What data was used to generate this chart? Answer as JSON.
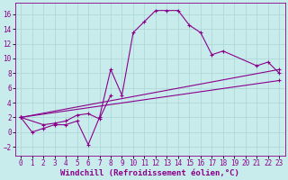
{
  "background_color": "#c8ecec",
  "grid_color": "#b0d8d8",
  "line_color": "#8b008b",
  "marker": "+",
  "xlabel": "Windchill (Refroidissement éolien,°C)",
  "xlabel_fontsize": 6.5,
  "xtick_fontsize": 5.5,
  "ytick_fontsize": 5.5,
  "xlim": [
    -0.5,
    23.5
  ],
  "ylim": [
    -3.2,
    17.5
  ],
  "yticks": [
    -2,
    0,
    2,
    4,
    6,
    8,
    10,
    12,
    14,
    16
  ],
  "xticks": [
    0,
    1,
    2,
    3,
    4,
    5,
    6,
    7,
    8,
    9,
    10,
    11,
    12,
    13,
    14,
    15,
    16,
    17,
    18,
    19,
    20,
    21,
    22,
    23
  ],
  "lines": [
    {
      "x": [
        0,
        1,
        2,
        3,
        4,
        5,
        6,
        7,
        8,
        9,
        10,
        11,
        12,
        13,
        14,
        15,
        16,
        17,
        18,
        21,
        22,
        23
      ],
      "y": [
        2.0,
        0.0,
        0.5,
        1.0,
        1.0,
        1.5,
        -1.7,
        2.0,
        8.5,
        5.0,
        13.5,
        15.0,
        16.5,
        16.5,
        16.5,
        14.5,
        13.5,
        10.5,
        11.0,
        9.0,
        9.5,
        8.0
      ]
    },
    {
      "x": [
        0,
        2,
        3,
        4,
        5,
        6,
        7,
        8
      ],
      "y": [
        2.0,
        1.0,
        1.2,
        1.5,
        2.3,
        2.5,
        1.8,
        5.0
      ]
    },
    {
      "x": [
        0,
        23
      ],
      "y": [
        2.0,
        8.5
      ]
    },
    {
      "x": [
        0,
        23
      ],
      "y": [
        2.0,
        7.0
      ]
    }
  ]
}
